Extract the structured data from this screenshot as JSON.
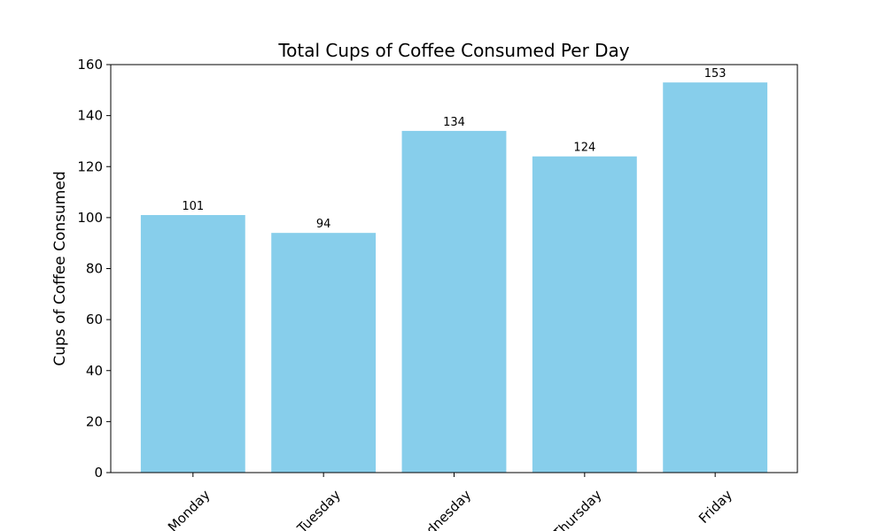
{
  "chart_data": {
    "type": "bar",
    "title": "Total Cups of Coffee Consumed Per Day",
    "xlabel": "",
    "ylabel": "Cups of Coffee Consumed",
    "categories": [
      "Monday",
      "Tuesday",
      "Wednesday",
      "Thursday",
      "Friday"
    ],
    "values": [
      101,
      94,
      134,
      124,
      153
    ],
    "data_labels": [
      "101",
      "94",
      "134",
      "124",
      "153"
    ],
    "ylim": [
      0,
      160
    ],
    "yticks": [
      0,
      20,
      40,
      60,
      80,
      100,
      120,
      140,
      160
    ],
    "ytick_labels": [
      "0",
      "20",
      "40",
      "60",
      "80",
      "100",
      "120",
      "140",
      "160"
    ],
    "grid": false,
    "legend": "none",
    "colors": {
      "bar": "#87ceeb",
      "axis": "#000000",
      "background": "#ffffff"
    }
  }
}
